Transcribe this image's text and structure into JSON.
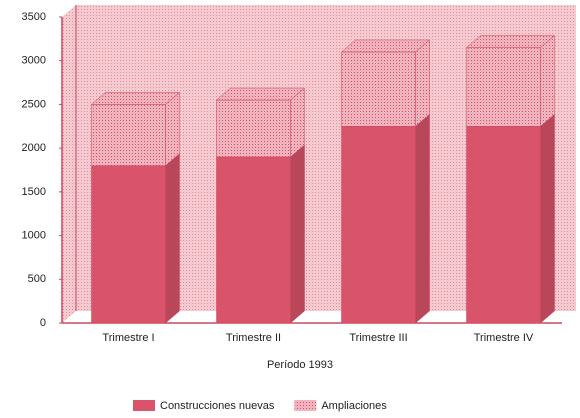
{
  "chart_data": {
    "type": "bar",
    "stacked": true,
    "x_label": "Período 1993",
    "categories": [
      "Trimestre I",
      "Trimestre II",
      "Trimestre III",
      "Trimestre IV"
    ],
    "series": [
      {
        "name": "Construcciones nuevas",
        "color": "#d9546a",
        "values": [
          1800,
          1900,
          2250,
          2250
        ]
      },
      {
        "name": "Ampliaciones",
        "color": "#eeb3bd",
        "values": [
          700,
          650,
          850,
          900
        ]
      }
    ],
    "ylim": [
      0,
      3500
    ],
    "yticks": [
      0,
      500,
      1000,
      1500,
      2000,
      2500,
      3000,
      3500
    ],
    "legend": "bottom"
  }
}
